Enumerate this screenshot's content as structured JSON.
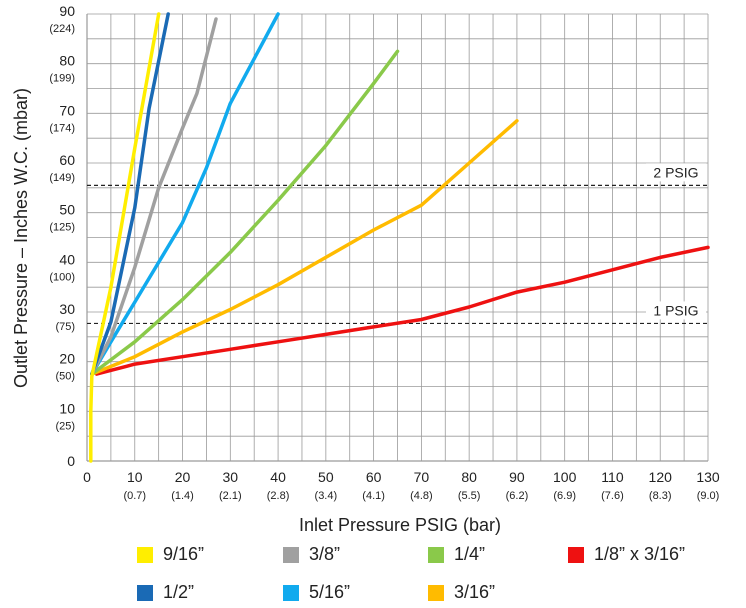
{
  "chart_data": {
    "type": "line",
    "xlabel": "Inlet Pressure PSIG (bar)",
    "ylabel": "Outlet Pressure – Inches W.C. (mbar)",
    "xlim": [
      0,
      130
    ],
    "ylim": [
      0,
      90
    ],
    "x_ticks": [
      {
        "value": 0,
        "label": "0",
        "sub": ""
      },
      {
        "value": 10,
        "label": "10",
        "sub": "(0.7)"
      },
      {
        "value": 20,
        "label": "20",
        "sub": "(1.4)"
      },
      {
        "value": 30,
        "label": "30",
        "sub": "(2.1)"
      },
      {
        "value": 40,
        "label": "40",
        "sub": "(2.8)"
      },
      {
        "value": 50,
        "label": "50",
        "sub": "(3.4)"
      },
      {
        "value": 60,
        "label": "60",
        "sub": "(4.1)"
      },
      {
        "value": 70,
        "label": "70",
        "sub": "(4.8)"
      },
      {
        "value": 80,
        "label": "80",
        "sub": "(5.5)"
      },
      {
        "value": 90,
        "label": "90",
        "sub": "(6.2)"
      },
      {
        "value": 100,
        "label": "100",
        "sub": "(6.9)"
      },
      {
        "value": 110,
        "label": "110",
        "sub": "(7.6)"
      },
      {
        "value": 120,
        "label": "120",
        "sub": "(8.3)"
      },
      {
        "value": 130,
        "label": "130",
        "sub": "(9.0)"
      }
    ],
    "y_ticks": [
      {
        "value": 0,
        "label": "0",
        "sub": ""
      },
      {
        "value": 10,
        "label": "10",
        "sub": "(25)"
      },
      {
        "value": 20,
        "label": "20",
        "sub": "(50)"
      },
      {
        "value": 30,
        "label": "30",
        "sub": "(75)"
      },
      {
        "value": 40,
        "label": "40",
        "sub": "(100)"
      },
      {
        "value": 50,
        "label": "50",
        "sub": "(125)"
      },
      {
        "value": 60,
        "label": "60",
        "sub": "(149)"
      },
      {
        "value": 70,
        "label": "70",
        "sub": "(174)"
      },
      {
        "value": 80,
        "label": "80",
        "sub": "(199)"
      },
      {
        "value": 90,
        "label": "90",
        "sub": "(224)"
      }
    ],
    "reference_lines": [
      {
        "y": 55.5,
        "label": "2 PSIG"
      },
      {
        "y": 27.7,
        "label": "1 PSIG"
      }
    ],
    "series": [
      {
        "name": "1/8” x 3/16”",
        "color": "#ee1111",
        "points": [
          [
            2,
            17.5
          ],
          [
            10,
            19.5
          ],
          [
            20,
            21
          ],
          [
            30,
            22.5
          ],
          [
            40,
            24
          ],
          [
            50,
            25.5
          ],
          [
            60,
            27
          ],
          [
            70,
            28.5
          ],
          [
            80,
            31
          ],
          [
            90,
            34
          ],
          [
            100,
            36
          ],
          [
            110,
            38.5
          ],
          [
            120,
            41
          ],
          [
            130,
            43
          ]
        ]
      },
      {
        "name": "3/16”",
        "color": "#ffbb00",
        "points": [
          [
            1,
            17.5
          ],
          [
            10,
            21
          ],
          [
            20,
            26
          ],
          [
            30,
            30.5
          ],
          [
            40,
            35.5
          ],
          [
            50,
            41
          ],
          [
            60,
            46.5
          ],
          [
            70,
            51.5
          ],
          [
            80,
            60
          ],
          [
            90,
            68.5
          ]
        ]
      },
      {
        "name": "1/4”",
        "color": "#8ac94a",
        "points": [
          [
            1,
            17.5
          ],
          [
            10,
            24
          ],
          [
            20,
            32.5
          ],
          [
            30,
            42
          ],
          [
            40,
            52.5
          ],
          [
            50,
            63.5
          ],
          [
            60,
            76
          ],
          [
            65,
            82.5
          ]
        ]
      },
      {
        "name": "5/16”",
        "color": "#11aaee",
        "points": [
          [
            1,
            17.5
          ],
          [
            5,
            24
          ],
          [
            10,
            32
          ],
          [
            20,
            48
          ],
          [
            25,
            59
          ],
          [
            30,
            72
          ],
          [
            40,
            90
          ]
        ]
      },
      {
        "name": "3/8”",
        "color": "#a0a0a0",
        "points": [
          [
            1,
            17.5
          ],
          [
            5,
            25
          ],
          [
            10,
            39
          ],
          [
            15,
            55
          ],
          [
            20,
            67
          ],
          [
            23,
            74
          ],
          [
            27,
            89
          ]
        ]
      },
      {
        "name": "1/2”",
        "color": "#1a6ab5",
        "points": [
          [
            1,
            17.5
          ],
          [
            5,
            28
          ],
          [
            10,
            51
          ],
          [
            13,
            71
          ],
          [
            17,
            90
          ]
        ]
      },
      {
        "name": "9/16”",
        "color": "#ffee00",
        "points": [
          [
            0.8,
            0
          ],
          [
            0.8,
            10
          ],
          [
            1,
            17
          ],
          [
            5,
            35
          ],
          [
            10,
            63
          ],
          [
            15,
            90
          ]
        ]
      }
    ]
  },
  "legend": [
    {
      "label": "9/16”",
      "color": "#ffee00"
    },
    {
      "label": "3/8”",
      "color": "#a0a0a0"
    },
    {
      "label": "1/4”",
      "color": "#8ac94a"
    },
    {
      "label": "1/8” x 3/16”",
      "color": "#ee1111"
    },
    {
      "label": "1/2”",
      "color": "#1a6ab5"
    },
    {
      "label": "5/16”",
      "color": "#11aaee"
    },
    {
      "label": "3/16”",
      "color": "#ffbb00"
    }
  ]
}
